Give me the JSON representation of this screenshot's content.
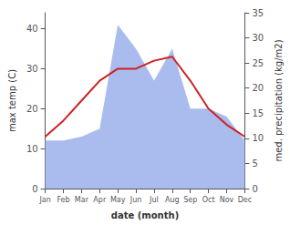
{
  "chart_data": {
    "type": "line",
    "xlabel": "date (month)",
    "ylabel": "max temp (C)",
    "y2label": "med. precipitation (kg/m2)",
    "categories": [
      "Jan",
      "Feb",
      "Mar",
      "Apr",
      "May",
      "Jun",
      "Jul",
      "Aug",
      "Sep",
      "Oct",
      "Nov",
      "Dec"
    ],
    "series": [
      {
        "type": "area",
        "color": "#aabbee",
        "values": [
          12,
          12,
          13,
          15,
          41,
          35,
          27,
          35,
          20,
          20,
          18,
          12
        ]
      },
      {
        "type": "line",
        "color": "#cc2222",
        "values": [
          13,
          17,
          22,
          27,
          30,
          30,
          32,
          33,
          27,
          20,
          16,
          13
        ]
      }
    ],
    "ylim": [
      0,
      44
    ],
    "yticks": [
      0,
      10,
      20,
      30,
      40
    ],
    "y2lim": [
      0,
      35
    ],
    "y2ticks": [
      0,
      5,
      10,
      15,
      20,
      25,
      30,
      35
    ],
    "grid": false
  }
}
